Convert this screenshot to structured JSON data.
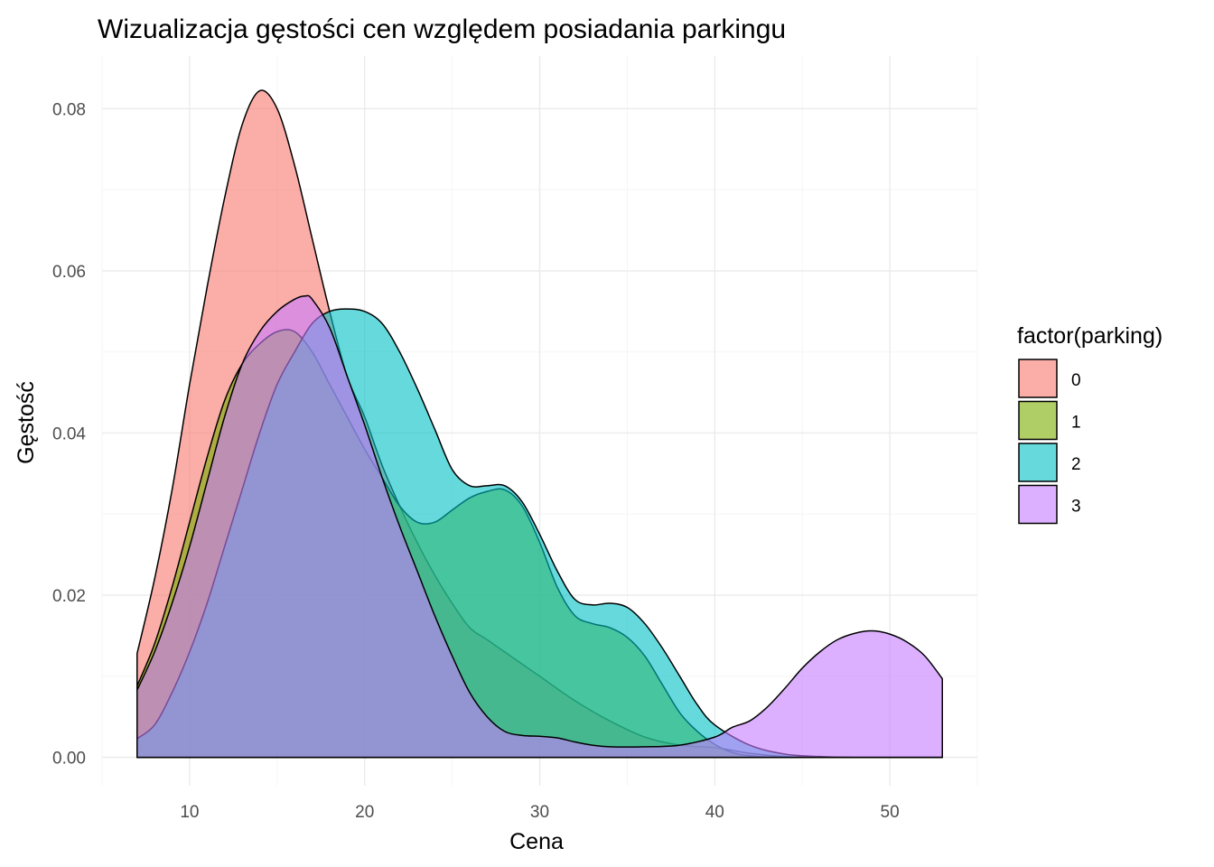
{
  "chart_data": {
    "type": "area",
    "title": "Wizualizacja gęstości cen względem posiadania parkingu",
    "xlabel": "Cena",
    "ylabel": "Gęstość",
    "xlim": [
      5,
      55
    ],
    "ylim": [
      -0.0035,
      0.0865
    ],
    "x_ticks": [
      10,
      20,
      30,
      40,
      50
    ],
    "x_tick_labels": [
      "10",
      "20",
      "30",
      "40",
      "50"
    ],
    "y_ticks": [
      0,
      0.02,
      0.04,
      0.06,
      0.08
    ],
    "y_tick_labels": [
      "0.00",
      "0.02",
      "0.04",
      "0.06",
      "0.08"
    ],
    "grid": true,
    "legend": {
      "title": "factor(parking)",
      "position": "right"
    },
    "series": [
      {
        "name": "0",
        "color": "#F8766D",
        "points": [
          [
            7,
            0.0128
          ],
          [
            8,
            0.022
          ],
          [
            9,
            0.033
          ],
          [
            10,
            0.046
          ],
          [
            11,
            0.058
          ],
          [
            12,
            0.069
          ],
          [
            13,
            0.078
          ],
          [
            14,
            0.0822
          ],
          [
            15,
            0.08
          ],
          [
            16,
            0.073
          ],
          [
            17,
            0.064
          ],
          [
            18,
            0.055
          ],
          [
            19,
            0.047
          ],
          [
            20,
            0.042
          ],
          [
            21,
            0.036
          ],
          [
            22,
            0.031
          ],
          [
            23,
            0.0265
          ],
          [
            24,
            0.0225
          ],
          [
            25,
            0.019
          ],
          [
            26,
            0.016
          ],
          [
            27,
            0.0145
          ],
          [
            28,
            0.013
          ],
          [
            29,
            0.0115
          ],
          [
            30,
            0.01
          ],
          [
            32,
            0.007
          ],
          [
            34,
            0.0045
          ],
          [
            36,
            0.0025
          ],
          [
            38,
            0.0015
          ],
          [
            40,
            0.0012
          ],
          [
            42,
            0.0005
          ],
          [
            44,
            0.0001
          ],
          [
            46,
            0
          ],
          [
            48,
            0
          ],
          [
            50,
            0
          ],
          [
            53,
            0
          ]
        ]
      },
      {
        "name": "1",
        "color": "#7CAE00",
        "points": [
          [
            7,
            0.0088
          ],
          [
            8,
            0.014
          ],
          [
            9,
            0.021
          ],
          [
            10,
            0.029
          ],
          [
            11,
            0.037
          ],
          [
            12,
            0.044
          ],
          [
            13,
            0.0485
          ],
          [
            14,
            0.051
          ],
          [
            15,
            0.0525
          ],
          [
            16,
            0.0525
          ],
          [
            17,
            0.05
          ],
          [
            18,
            0.046
          ],
          [
            19,
            0.042
          ],
          [
            20,
            0.038
          ],
          [
            21,
            0.0345
          ],
          [
            22,
            0.031
          ],
          [
            23,
            0.029
          ],
          [
            24,
            0.029
          ],
          [
            25,
            0.0305
          ],
          [
            26,
            0.032
          ],
          [
            27,
            0.0328
          ],
          [
            28,
            0.033
          ],
          [
            29,
            0.031
          ],
          [
            30,
            0.0265
          ],
          [
            31,
            0.021
          ],
          [
            32,
            0.0175
          ],
          [
            33,
            0.0165
          ],
          [
            34,
            0.016
          ],
          [
            35,
            0.0148
          ],
          [
            36,
            0.0125
          ],
          [
            37,
            0.009
          ],
          [
            38,
            0.0055
          ],
          [
            39,
            0.0032
          ],
          [
            40,
            0.0016
          ],
          [
            41,
            0.0006
          ],
          [
            42,
            0.0002
          ],
          [
            44,
            0
          ],
          [
            53,
            0
          ]
        ]
      },
      {
        "name": "2",
        "color": "#00BFC4",
        "points": [
          [
            7,
            0.0023
          ],
          [
            8,
            0.004
          ],
          [
            9,
            0.008
          ],
          [
            10,
            0.013
          ],
          [
            11,
            0.019
          ],
          [
            12,
            0.026
          ],
          [
            13,
            0.033
          ],
          [
            14,
            0.04
          ],
          [
            15,
            0.046
          ],
          [
            16,
            0.05
          ],
          [
            17,
            0.0535
          ],
          [
            18,
            0.055
          ],
          [
            19,
            0.0553
          ],
          [
            20,
            0.055
          ],
          [
            21,
            0.0535
          ],
          [
            22,
            0.05
          ],
          [
            23,
            0.0455
          ],
          [
            24,
            0.0405
          ],
          [
            25,
            0.0355
          ],
          [
            26,
            0.0335
          ],
          [
            27,
            0.0335
          ],
          [
            28,
            0.0335
          ],
          [
            29,
            0.0315
          ],
          [
            30,
            0.0275
          ],
          [
            31,
            0.023
          ],
          [
            32,
            0.0195
          ],
          [
            33,
            0.0188
          ],
          [
            34,
            0.019
          ],
          [
            35,
            0.0185
          ],
          [
            36,
            0.0165
          ],
          [
            37,
            0.0135
          ],
          [
            38,
            0.01
          ],
          [
            39,
            0.0065
          ],
          [
            40,
            0.004
          ],
          [
            42,
            0.0015
          ],
          [
            44,
            0.0004
          ],
          [
            46,
            0.0001
          ],
          [
            48,
            0
          ],
          [
            53,
            0
          ]
        ]
      },
      {
        "name": "3",
        "color": "#C77CFF",
        "points": [
          [
            7,
            0.0083
          ],
          [
            8,
            0.013
          ],
          [
            9,
            0.019
          ],
          [
            10,
            0.026
          ],
          [
            11,
            0.034
          ],
          [
            12,
            0.042
          ],
          [
            13,
            0.0485
          ],
          [
            14,
            0.0525
          ],
          [
            15,
            0.055
          ],
          [
            16,
            0.0565
          ],
          [
            16.6,
            0.0569
          ],
          [
            17,
            0.0565
          ],
          [
            18,
            0.053
          ],
          [
            19,
            0.047
          ],
          [
            20,
            0.041
          ],
          [
            21,
            0.0345
          ],
          [
            22,
            0.0285
          ],
          [
            23,
            0.023
          ],
          [
            24,
            0.0175
          ],
          [
            25,
            0.0125
          ],
          [
            26,
            0.008
          ],
          [
            27,
            0.005
          ],
          [
            28,
            0.0032
          ],
          [
            29,
            0.0027
          ],
          [
            30,
            0.0026
          ],
          [
            31,
            0.0024
          ],
          [
            32,
            0.0019
          ],
          [
            33,
            0.0015
          ],
          [
            34,
            0.0013
          ],
          [
            36,
            0.0013
          ],
          [
            38,
            0.0015
          ],
          [
            40,
            0.0025
          ],
          [
            41,
            0.0037
          ],
          [
            42,
            0.0045
          ],
          [
            43,
            0.0062
          ],
          [
            44,
            0.0085
          ],
          [
            45,
            0.011
          ],
          [
            46,
            0.013
          ],
          [
            47,
            0.0145
          ],
          [
            48,
            0.0153
          ],
          [
            49,
            0.0156
          ],
          [
            50,
            0.0152
          ],
          [
            51,
            0.0142
          ],
          [
            52,
            0.0125
          ],
          [
            53,
            0.0097
          ]
        ]
      }
    ]
  }
}
